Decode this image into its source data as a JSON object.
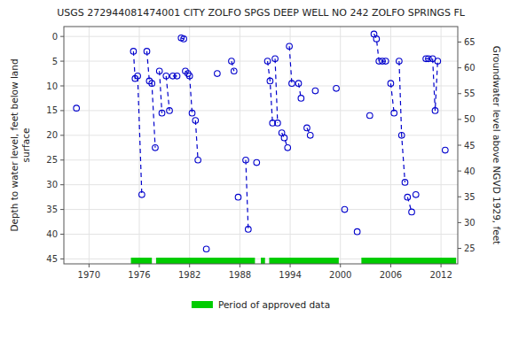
{
  "chart_data": {
    "type": "line",
    "title": "USGS 272944081474001 CITY ZOLFO SPGS DEEP WELL NO 242 ZOLFO SPRINGS FL",
    "ylabel": "Depth to water level, feet below land\nsurface",
    "y2label": "Groundwater level above NGVD 1929, feet",
    "xlim": [
      1967,
      2014
    ],
    "ylim": [
      46,
      -2
    ],
    "y2lim": [
      22,
      68
    ],
    "xticks": [
      1970,
      1976,
      1982,
      1988,
      1994,
      2000,
      2006,
      2012
    ],
    "yticks": [
      0,
      5,
      10,
      15,
      20,
      25,
      30,
      35,
      40,
      45
    ],
    "y2ticks": [
      65,
      60,
      55,
      50,
      45,
      40,
      35,
      30,
      25
    ],
    "grid": true,
    "x": [
      1968.5,
      null,
      1975.3,
      1975.5,
      1975.8,
      1976.3,
      null,
      1976.9,
      1977.2,
      1977.5,
      1977.9,
      null,
      1978.4,
      1978.7,
      null,
      1979.2,
      1979.6,
      null,
      1980.0,
      1980.5,
      null,
      1981.0,
      1981.3,
      null,
      1981.5,
      1981.8,
      null,
      1982.0,
      1982.3,
      null,
      1982.7,
      1983.0,
      null,
      1984.0,
      null,
      1985.3,
      null,
      1987.0,
      1987.3,
      null,
      1987.8,
      null,
      1988.7,
      1989.0,
      null,
      1990.0,
      null,
      1991.3,
      1991.6,
      1991.9,
      null,
      1992.2,
      1992.5,
      null,
      1993.0,
      1993.3,
      1993.7,
      null,
      1993.9,
      1994.2,
      null,
      1995.0,
      1995.3,
      null,
      1996.0,
      1996.4,
      null,
      1997.0,
      null,
      1999.5,
      null,
      2000.5,
      null,
      2002.0,
      null,
      2003.5,
      null,
      2004.0,
      2004.3,
      2004.6,
      null,
      2005.0,
      2005.4,
      null,
      2006.0,
      2006.4,
      null,
      2007.0,
      2007.3,
      2007.7,
      null,
      2008.0,
      2008.5,
      null,
      2009.0,
      null,
      2010.2,
      2010.5,
      null,
      2011.0,
      2011.3,
      2011.6,
      null,
      2012.5
    ],
    "series": [
      {
        "color": "#0000cc",
        "marker": "circle",
        "line_style": "dashed",
        "values": [
          14.5,
          null,
          3.0,
          8.5,
          8.0,
          32.0,
          null,
          3.0,
          9.0,
          9.5,
          22.5,
          null,
          7.0,
          15.5,
          null,
          8.0,
          15.0,
          null,
          8.0,
          8.0,
          null,
          0.3,
          0.5,
          null,
          7.0,
          7.5,
          null,
          8.0,
          15.5,
          null,
          17.0,
          25.0,
          null,
          43.0,
          null,
          7.5,
          null,
          5.0,
          7.0,
          null,
          32.5,
          null,
          25.0,
          39.0,
          null,
          25.5,
          null,
          5.0,
          9.0,
          17.5,
          null,
          4.5,
          17.5,
          null,
          19.5,
          20.5,
          22.5,
          null,
          2.0,
          9.5,
          null,
          9.5,
          12.5,
          null,
          18.5,
          20.0,
          null,
          11.0,
          null,
          10.5,
          null,
          35.0,
          null,
          39.5,
          null,
          16.0,
          null,
          -0.5,
          0.5,
          5.0,
          null,
          5.0,
          5.0,
          null,
          9.5,
          15.5,
          null,
          5.0,
          20.0,
          29.5,
          null,
          32.5,
          35.5,
          null,
          32.0,
          null,
          4.5,
          4.5,
          null,
          4.5,
          15.0,
          5.0,
          null,
          23.0
        ]
      }
    ],
    "approved": {
      "name": "Period of approved data",
      "color": "#00cc00",
      "periods": [
        [
          1975.0,
          1977.5
        ],
        [
          1978.0,
          1989.8
        ],
        [
          1990.5,
          1991.0
        ],
        [
          1991.5,
          1999.8
        ],
        [
          2002.5,
          2013.8
        ]
      ]
    }
  }
}
